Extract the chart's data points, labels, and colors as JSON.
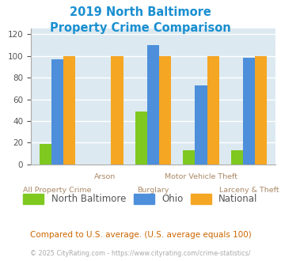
{
  "title_line1": "2019 North Baltimore",
  "title_line2": "Property Crime Comparison",
  "title_color": "#1a8fd1",
  "categories": [
    "All Property Crime",
    "Arson",
    "Burglary",
    "Motor Vehicle Theft",
    "Larceny & Theft"
  ],
  "north_baltimore": [
    19,
    0,
    49,
    13,
    13
  ],
  "ohio": [
    97,
    0,
    110,
    73,
    98
  ],
  "national": [
    100,
    100,
    100,
    100,
    100
  ],
  "bar_colors": {
    "north_baltimore": "#7ec820",
    "ohio": "#4d8fdb",
    "national": "#f5a623"
  },
  "ylim": [
    0,
    125
  ],
  "yticks": [
    0,
    20,
    40,
    60,
    80,
    100,
    120
  ],
  "plot_bg_color": "#dce9f0",
  "grid_color": "#ffffff",
  "footer1": "Compared to U.S. average. (U.S. average equals 100)",
  "footer2": "© 2025 CityRating.com - https://www.cityrating.com/crime-statistics/",
  "footer1_color": "#cc6600",
  "footer2_color": "#aaaaaa",
  "legend_labels": [
    "North Baltimore",
    "Ohio",
    "National"
  ],
  "tick_label_color": "#aa8866",
  "label_row1": [
    0,
    2,
    4
  ],
  "label_row2": [
    1,
    3
  ]
}
